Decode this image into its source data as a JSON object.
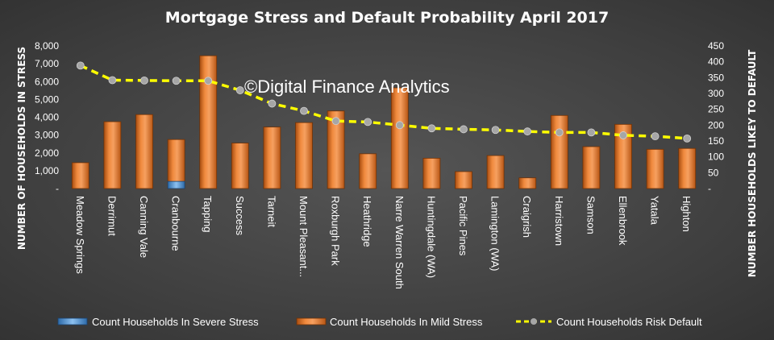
{
  "chart_data": {
    "type": "bar",
    "title": "Mortgage Stress and Default Probability April 2017",
    "watermark": "©Digital Finance Analytics",
    "ylabel": "NUMBER OF HOUSEHOLDS IN STRESS",
    "y2label": "NUMBER HOUSEHOLDS LIKEY TO DEFAULT",
    "ylim": [
      0,
      8000
    ],
    "y2lim": [
      0,
      450
    ],
    "yticks": [
      "-",
      "1,000",
      "2,000",
      "3,000",
      "4,000",
      "5,000",
      "6,000",
      "7,000",
      "8,000"
    ],
    "y2ticks": [
      "-",
      "50",
      "100",
      "150",
      "200",
      "250",
      "300",
      "350",
      "400",
      "450"
    ],
    "categories": [
      "Meadow Springs",
      "Derrimut",
      "Canning Vale",
      "Cranbourne",
      "Tapping",
      "Success",
      "Tarneit",
      "Mount Pleasant...",
      "Roxburgh Park",
      "Heathridge",
      "Narre Warren South",
      "Huntingdale (WA)",
      "Pacific Pines",
      "Lamington (WA)",
      "Craigrish",
      "Harristown",
      "Samson",
      "Ellenbrook",
      "Yatala",
      "Highton"
    ],
    "series": [
      {
        "name": "Count Households In Severe Stress",
        "axis": "left",
        "kind": "bar",
        "color": "#4a90d9",
        "values": [
          0,
          0,
          0,
          400,
          0,
          0,
          0,
          0,
          0,
          0,
          0,
          0,
          0,
          0,
          0,
          0,
          0,
          0,
          0,
          0
        ]
      },
      {
        "name": "Count Households In Mild Stress",
        "axis": "left",
        "kind": "bar",
        "color": "#e8772e",
        "values": [
          1450,
          3750,
          4150,
          2750,
          7450,
          2550,
          3450,
          3700,
          4350,
          1950,
          5650,
          1700,
          950,
          1850,
          600,
          4100,
          2350,
          3600,
          2200,
          2250
        ]
      },
      {
        "name": "Count Households Risk Default",
        "axis": "right",
        "kind": "line",
        "color": "#ffff00",
        "marker_color": "#a6a6a6",
        "values": [
          388,
          342,
          341,
          340,
          340,
          310,
          268,
          245,
          213,
          210,
          200,
          190,
          187,
          185,
          180,
          177,
          177,
          168,
          165,
          158
        ]
      }
    ],
    "legend": "bottom",
    "grid": false
  }
}
